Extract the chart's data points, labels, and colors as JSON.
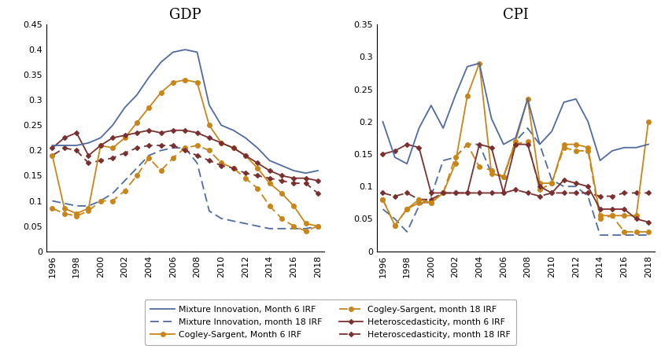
{
  "years": [
    1996,
    1997,
    1998,
    1999,
    2000,
    2001,
    2002,
    2003,
    2004,
    2005,
    2006,
    2007,
    2008,
    2009,
    2010,
    2011,
    2012,
    2013,
    2014,
    2015,
    2016,
    2017,
    2018
  ],
  "gdp": {
    "mix6": [
      0.21,
      0.21,
      0.21,
      0.215,
      0.225,
      0.25,
      0.285,
      0.31,
      0.345,
      0.375,
      0.395,
      0.4,
      0.395,
      0.29,
      0.25,
      0.24,
      0.225,
      0.205,
      0.18,
      0.17,
      0.16,
      0.155,
      0.16
    ],
    "mix18": [
      0.1,
      0.095,
      0.09,
      0.09,
      0.1,
      0.115,
      0.14,
      0.165,
      0.19,
      0.2,
      0.205,
      0.205,
      0.175,
      0.08,
      0.065,
      0.06,
      0.055,
      0.05,
      0.045,
      0.045,
      0.045,
      0.045,
      0.05
    ],
    "cog6": [
      0.19,
      0.085,
      0.075,
      0.085,
      0.21,
      0.205,
      0.225,
      0.255,
      0.285,
      0.315,
      0.335,
      0.34,
      0.335,
      0.25,
      0.215,
      0.205,
      0.19,
      0.165,
      0.135,
      0.115,
      0.09,
      0.055,
      0.05
    ],
    "cog18": [
      0.085,
      0.075,
      0.07,
      0.08,
      0.1,
      0.1,
      0.12,
      0.15,
      0.185,
      0.16,
      0.185,
      0.205,
      0.21,
      0.2,
      0.175,
      0.165,
      0.145,
      0.125,
      0.09,
      0.065,
      0.05,
      0.04,
      0.05
    ],
    "het6": [
      0.205,
      0.225,
      0.235,
      0.19,
      0.21,
      0.225,
      0.23,
      0.235,
      0.24,
      0.235,
      0.24,
      0.24,
      0.235,
      0.225,
      0.215,
      0.205,
      0.19,
      0.175,
      0.16,
      0.15,
      0.145,
      0.145,
      0.14
    ],
    "het18": [
      0.19,
      0.205,
      0.2,
      0.175,
      0.18,
      0.185,
      0.195,
      0.205,
      0.21,
      0.21,
      0.21,
      0.2,
      0.19,
      0.18,
      0.17,
      0.165,
      0.155,
      0.15,
      0.145,
      0.14,
      0.135,
      0.135,
      0.115
    ]
  },
  "cpi": {
    "mix6": [
      0.2,
      0.145,
      0.135,
      0.19,
      0.225,
      0.19,
      0.24,
      0.285,
      0.29,
      0.205,
      0.165,
      0.175,
      0.235,
      0.165,
      0.185,
      0.23,
      0.235,
      0.2,
      0.14,
      0.155,
      0.16,
      0.16,
      0.165
    ],
    "mix18": [
      0.065,
      0.05,
      0.03,
      0.07,
      0.085,
      0.14,
      0.145,
      0.165,
      0.165,
      0.12,
      0.115,
      0.17,
      0.19,
      0.165,
      0.11,
      0.1,
      0.1,
      0.085,
      0.025,
      0.025,
      0.025,
      0.025,
      0.025
    ],
    "cog6": [
      0.08,
      0.04,
      0.065,
      0.08,
      0.075,
      0.09,
      0.135,
      0.24,
      0.29,
      0.12,
      0.115,
      0.17,
      0.235,
      0.105,
      0.105,
      0.165,
      0.165,
      0.16,
      0.055,
      0.055,
      0.055,
      0.055,
      0.2
    ],
    "cog18": [
      0.08,
      0.04,
      0.065,
      0.075,
      0.075,
      0.09,
      0.145,
      0.165,
      0.13,
      0.125,
      0.115,
      0.165,
      0.17,
      0.095,
      0.105,
      0.16,
      0.155,
      0.155,
      0.05,
      0.055,
      0.03,
      0.03,
      0.03
    ],
    "het6": [
      0.15,
      0.155,
      0.165,
      0.16,
      0.09,
      0.09,
      0.09,
      0.09,
      0.165,
      0.16,
      0.09,
      0.165,
      0.165,
      0.1,
      0.09,
      0.11,
      0.105,
      0.1,
      0.065,
      0.065,
      0.065,
      0.05,
      0.045
    ],
    "het18": [
      0.09,
      0.085,
      0.09,
      0.08,
      0.08,
      0.09,
      0.09,
      0.09,
      0.09,
      0.09,
      0.09,
      0.095,
      0.09,
      0.085,
      0.09,
      0.09,
      0.09,
      0.09,
      0.085,
      0.085,
      0.09,
      0.09,
      0.09
    ]
  },
  "colors": {
    "blue": "#4F6B9F",
    "orange": "#C8861A",
    "red": "#7B3030"
  },
  "xlim": [
    1995.5,
    2018.5
  ],
  "gdp_ylim": [
    0,
    0.45
  ],
  "cpi_ylim": [
    0,
    0.35
  ],
  "gdp_yticks": [
    0,
    0.05,
    0.1,
    0.15,
    0.2,
    0.25,
    0.3,
    0.35,
    0.4,
    0.45
  ],
  "cpi_yticks": [
    0,
    0.05,
    0.1,
    0.15,
    0.2,
    0.25,
    0.3,
    0.35
  ],
  "xticks": [
    1996,
    1998,
    2000,
    2002,
    2004,
    2006,
    2008,
    2010,
    2012,
    2014,
    2016,
    2018
  ],
  "legend_entries": [
    "Mixture Innovation, Month 6 IRF",
    "Mixture Innovation, month 18 IRF",
    "Cogley-Sargent, Month 6 IRF",
    "Cogley-Sargent, month 18 IRF",
    "Heteroscedasticity, month 6 IRF",
    "Heteroscedasticity, month 18 IRF"
  ]
}
